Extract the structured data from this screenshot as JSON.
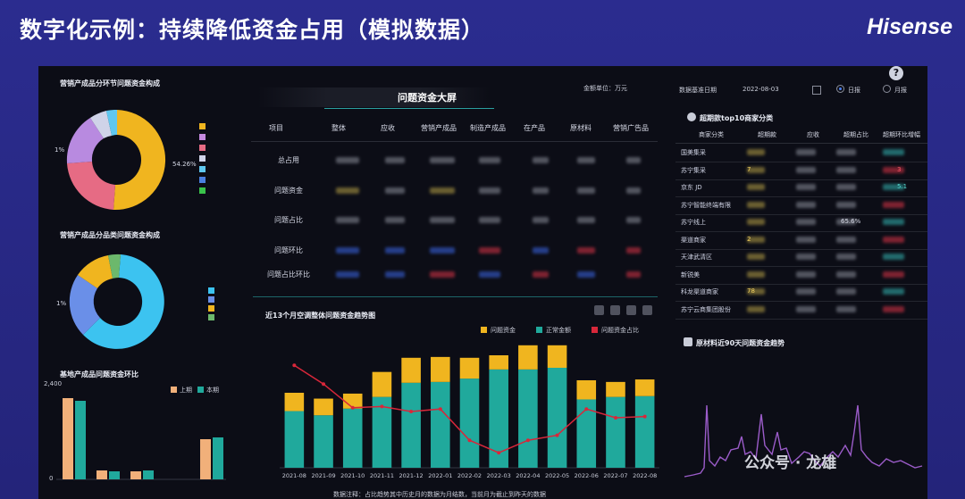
{
  "slide_title": "数字化示例：持续降低资金占用（模拟数据）",
  "brand": "Hisense",
  "center": {
    "title": "问题资金大屏",
    "unit": "金额单位：万元",
    "columns": [
      "项目",
      "整体",
      "应收",
      "营销产成品",
      "制造产成品",
      "在产品",
      "原材料",
      "营销广告品"
    ],
    "rows": [
      "总占用",
      "问题资金",
      "问题占比",
      "问题环比",
      "问题占比环比"
    ]
  },
  "controls": {
    "date_label": "数据基准日期",
    "date_value": "2022-08-03",
    "radio_day": "日报",
    "radio_month": "月报",
    "help": "?"
  },
  "left": {
    "pie1_title": "营销产成品分环节问题资金构成",
    "pie1_label": "54.26%",
    "pie1_side_label": "1%",
    "pie2_title": "营销产成品分品类问题资金构成",
    "pie2_side_label": "1%",
    "bar_title": "基地产成品问题资金环比",
    "bar_legend": [
      "上期",
      "本期"
    ],
    "bar_ytop": "2,400",
    "bar_ybottom": "0"
  },
  "right": {
    "top_title": "超期款top10商家分类",
    "top_headers": [
      "商家分类",
      "超期款",
      "应收",
      "超期占比",
      "超期环比增幅"
    ],
    "merchants": [
      "国美集采",
      "苏宁集采",
      "京东 JD",
      "苏宁智能终端有限",
      "苏宁线上",
      "渠道商家",
      "天津武清区",
      "新锐美",
      "科龙渠道商家",
      "苏宁云商集团股份"
    ],
    "merchant_values": [
      "",
      "7",
      "",
      "",
      "",
      "2",
      "",
      "",
      "78",
      ""
    ],
    "merchant_pct": [
      "",
      "",
      "",
      "",
      "65.6%",
      "",
      "",
      "",
      "",
      ""
    ],
    "merchant_growth": [
      "",
      "3",
      "5.1",
      "",
      "",
      "",
      "",
      "",
      "",
      ""
    ],
    "trend_title": "原材料近90天问题资金趋势"
  },
  "chart_data": {
    "type": "bar",
    "title": "近13个月空调整体问题资金趋势图",
    "categories": [
      "2021-08",
      "2021-09",
      "2021-10",
      "2021-11",
      "2021-12",
      "2022-01",
      "2022-02",
      "2022-03",
      "2022-04",
      "2022-05",
      "2022-06",
      "2022-07",
      "2022-08"
    ],
    "series": [
      {
        "name": "问题资金",
        "color": "#f0b51f",
        "values": [
          22,
          20,
          18,
          30,
          30,
          30,
          25,
          17,
          29,
          27,
          23,
          18,
          20
        ]
      },
      {
        "name": "正常金额",
        "color": "#20a99c",
        "values": [
          68,
          63,
          71,
          85,
          102,
          103,
          107,
          118,
          118,
          120,
          82,
          85,
          86
        ]
      },
      {
        "name": "问题资金占比",
        "color": "#d8273a",
        "values": [
          82,
          67,
          48,
          49,
          45,
          47,
          22,
          12,
          22,
          26,
          47,
          40,
          41
        ]
      }
    ],
    "footnote": "数据注释：占比趋势其中历史月的数据为月结数，当前月为截止到昨天的数据"
  },
  "watermark": "公众号 · 龙雄"
}
